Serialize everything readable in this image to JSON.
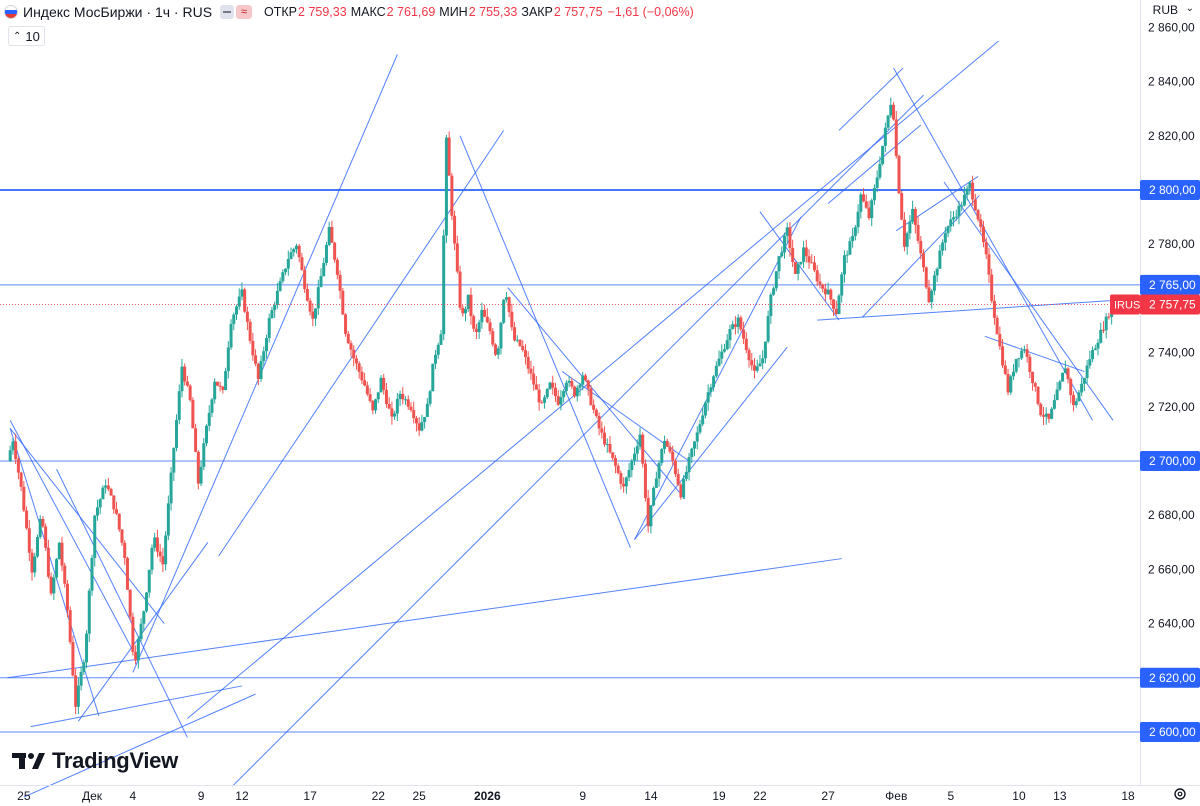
{
  "legend": {
    "symbol": "Индекс МосБиржи · 1ч · RUS",
    "open_label": "ОТКР",
    "open_value": "2 759,33",
    "high_label": "МАКС",
    "high_value": "2 761,69",
    "low_label": "МИН",
    "low_value": "2 755,33",
    "close_label": "ЗАКР",
    "close_value": "2 757,75",
    "change": "−1,61 (−0,06%)",
    "approx_glyph": "≈",
    "collapse_count": "10"
  },
  "currency": "RUB",
  "branding": "TradingView",
  "colors": {
    "up": "#26a69a",
    "down": "#ef5350",
    "drawing": "#2962ff",
    "price_label": "#f23645",
    "horizontal_level": "#2962ff"
  },
  "chart_data": {
    "type": "candlestick",
    "title": "Индекс МосБиржи · 1ч · RUS",
    "ylim": [
      2584,
      2866
    ],
    "y_ticks": [
      "2 860,00",
      "2 840,00",
      "2 820,00",
      "2 800,00",
      "2 780,00",
      "2 760,00",
      "2 740,00",
      "2 720,00",
      "2 700,00",
      "2 680,00",
      "2 660,00",
      "2 640,00",
      "2 620,00",
      "2 600,00"
    ],
    "y_tick_values": [
      2860,
      2840,
      2820,
      2800,
      2780,
      2760,
      2740,
      2720,
      2700,
      2680,
      2660,
      2640,
      2620,
      2600
    ],
    "x_ticks": [
      {
        "label": "25",
        "day": -4,
        "bold": false
      },
      {
        "label": "Дек",
        "day": 1,
        "bold": false
      },
      {
        "label": "4",
        "day": 4,
        "bold": false
      },
      {
        "label": "9",
        "day": 9,
        "bold": false
      },
      {
        "label": "12",
        "day": 12,
        "bold": false
      },
      {
        "label": "17",
        "day": 17,
        "bold": false
      },
      {
        "label": "22",
        "day": 22,
        "bold": false
      },
      {
        "label": "25",
        "day": 25,
        "bold": false
      },
      {
        "label": "2026",
        "day": 30,
        "bold": true
      },
      {
        "label": "9",
        "day": 37,
        "bold": false
      },
      {
        "label": "14",
        "day": 42,
        "bold": false
      },
      {
        "label": "19",
        "day": 47,
        "bold": false
      },
      {
        "label": "22",
        "day": 50,
        "bold": false
      },
      {
        "label": "27",
        "day": 55,
        "bold": false
      },
      {
        "label": "Фев",
        "day": 60,
        "bold": false
      },
      {
        "label": "5",
        "day": 64,
        "bold": false
      },
      {
        "label": "10",
        "day": 69,
        "bold": false
      },
      {
        "label": "13",
        "day": 72,
        "bold": false
      },
      {
        "label": "18",
        "day": 77,
        "bold": false
      }
    ],
    "price_path": [
      [
        -5,
        2700
      ],
      [
        -4.6,
        2708
      ],
      [
        -4,
        2690
      ],
      [
        -3.2,
        2660
      ],
      [
        -2.5,
        2680
      ],
      [
        -1.8,
        2650
      ],
      [
        -1.2,
        2670
      ],
      [
        -0.6,
        2645
      ],
      [
        0,
        2610
      ],
      [
        0.7,
        2630
      ],
      [
        1.4,
        2680
      ],
      [
        2.2,
        2692
      ],
      [
        2.9,
        2682
      ],
      [
        3.6,
        2665
      ],
      [
        4.3,
        2625
      ],
      [
        5,
        2645
      ],
      [
        5.7,
        2672
      ],
      [
        6.4,
        2662
      ],
      [
        7.2,
        2705
      ],
      [
        7.8,
        2735
      ],
      [
        8.4,
        2722
      ],
      [
        9,
        2692
      ],
      [
        9.6,
        2712
      ],
      [
        10.2,
        2730
      ],
      [
        10.8,
        2725
      ],
      [
        11.4,
        2752
      ],
      [
        12.2,
        2762
      ],
      [
        12.8,
        2745
      ],
      [
        13.4,
        2730
      ],
      [
        14.2,
        2752
      ],
      [
        14.8,
        2762
      ],
      [
        15.6,
        2775
      ],
      [
        16.2,
        2780
      ],
      [
        16.8,
        2765
      ],
      [
        17.4,
        2752
      ],
      [
        18,
        2768
      ],
      [
        18.6,
        2785
      ],
      [
        19.2,
        2770
      ],
      [
        19.8,
        2748
      ],
      [
        20.4,
        2738
      ],
      [
        21.2,
        2728
      ],
      [
        21.8,
        2718
      ],
      [
        22.4,
        2730
      ],
      [
        23.2,
        2715
      ],
      [
        23.8,
        2725
      ],
      [
        24.6,
        2720
      ],
      [
        25.2,
        2712
      ],
      [
        25.8,
        2720
      ],
      [
        26.3,
        2738
      ],
      [
        26.8,
        2748
      ],
      [
        27.2,
        2818
      ],
      [
        27.7,
        2785
      ],
      [
        28.3,
        2752
      ],
      [
        28.8,
        2760
      ],
      [
        29.3,
        2745
      ],
      [
        29.8,
        2755
      ],
      [
        30.4,
        2748
      ],
      [
        30.9,
        2738
      ],
      [
        31.5,
        2765
      ],
      [
        32.1,
        2745
      ],
      [
        32.7,
        2742
      ],
      [
        33.5,
        2730
      ],
      [
        34.2,
        2720
      ],
      [
        34.8,
        2728
      ],
      [
        35.4,
        2722
      ],
      [
        36,
        2730
      ],
      [
        36.6,
        2725
      ],
      [
        37.2,
        2732
      ],
      [
        37.8,
        2722
      ],
      [
        38.4,
        2712
      ],
      [
        39,
        2705
      ],
      [
        39.6,
        2698
      ],
      [
        40.2,
        2690
      ],
      [
        40.8,
        2700
      ],
      [
        41.4,
        2710
      ],
      [
        42,
        2676
      ],
      [
        42.6,
        2695
      ],
      [
        43.2,
        2708
      ],
      [
        43.8,
        2700
      ],
      [
        44.4,
        2688
      ],
      [
        45,
        2700
      ],
      [
        45.6,
        2710
      ],
      [
        46.2,
        2722
      ],
      [
        46.8,
        2732
      ],
      [
        47.4,
        2740
      ],
      [
        48,
        2748
      ],
      [
        48.6,
        2752
      ],
      [
        49.2,
        2742
      ],
      [
        49.8,
        2732
      ],
      [
        50.4,
        2738
      ],
      [
        51,
        2760
      ],
      [
        51.6,
        2775
      ],
      [
        52.2,
        2785
      ],
      [
        52.8,
        2768
      ],
      [
        53.4,
        2778
      ],
      [
        54,
        2772
      ],
      [
        54.6,
        2765
      ],
      [
        55.2,
        2762
      ],
      [
        55.8,
        2755
      ],
      [
        56.4,
        2775
      ],
      [
        57,
        2782
      ],
      [
        57.6,
        2798
      ],
      [
        58.2,
        2790
      ],
      [
        58.8,
        2805
      ],
      [
        59.4,
        2822
      ],
      [
        59.9,
        2835
      ],
      [
        60.3,
        2805
      ],
      [
        60.8,
        2780
      ],
      [
        61.4,
        2792
      ],
      [
        62,
        2776
      ],
      [
        62.6,
        2760
      ],
      [
        63.2,
        2772
      ],
      [
        63.8,
        2785
      ],
      [
        64.4,
        2790
      ],
      [
        65,
        2795
      ],
      [
        65.6,
        2802
      ],
      [
        66.2,
        2790
      ],
      [
        66.8,
        2775
      ],
      [
        67.2,
        2760
      ],
      [
        67.8,
        2742
      ],
      [
        68.4,
        2726
      ],
      [
        69,
        2738
      ],
      [
        69.6,
        2742
      ],
      [
        70.2,
        2730
      ],
      [
        70.8,
        2718
      ],
      [
        71.4,
        2715
      ],
      [
        72,
        2725
      ],
      [
        72.6,
        2735
      ],
      [
        73.2,
        2720
      ],
      [
        73.8,
        2728
      ],
      [
        74.4,
        2738
      ],
      [
        75,
        2745
      ],
      [
        75.6,
        2752
      ],
      [
        76.2,
        2760
      ],
      [
        76.8,
        2757.75
      ]
    ],
    "last_price": 2757.75,
    "last_price_label": "2 757,75",
    "last_symbol": "IRUS",
    "horizontal_levels": [
      {
        "value": 2800,
        "label": "2 800,00",
        "strong": true
      },
      {
        "value": 2765,
        "label": "2 765,00",
        "strong": false
      },
      {
        "value": 2700,
        "label": "2 700,00",
        "strong": false
      },
      {
        "value": 2620,
        "label": "2 620,00",
        "strong": false
      },
      {
        "value": 2600,
        "label": "2 600,00",
        "strong": false
      }
    ],
    "trendlines": [
      [
        [
          -5,
          2715
        ],
        [
          4,
          2630
        ]
      ],
      [
        [
          -5,
          2712
        ],
        [
          6.3,
          2640
        ]
      ],
      [
        [
          -5,
          2712
        ],
        [
          1.5,
          2606
        ]
      ],
      [
        [
          -1.6,
          2697
        ],
        [
          8,
          2598
        ]
      ],
      [
        [
          -3.5,
          2602
        ],
        [
          12,
          2617
        ]
      ],
      [
        [
          -5.2,
          2620
        ],
        [
          56,
          2664
        ]
      ],
      [
        [
          0,
          2604
        ],
        [
          9.5,
          2670
        ]
      ],
      [
        [
          -4,
          2576
        ],
        [
          13,
          2614
        ]
      ],
      [
        [
          4,
          2622
        ],
        [
          23.4,
          2850
        ]
      ],
      [
        [
          10.3,
          2665
        ],
        [
          31.2,
          2822
        ]
      ],
      [
        [
          11.3,
          2580
        ],
        [
          62,
          2835
        ]
      ],
      [
        [
          8,
          2605
        ],
        [
          67.5,
          2855
        ]
      ],
      [
        [
          28,
          2820
        ],
        [
          40.5,
          2668
        ]
      ],
      [
        [
          31.5,
          2764
        ],
        [
          44.5,
          2686
        ]
      ],
      [
        [
          35.5,
          2733
        ],
        [
          44.8,
          2700
        ]
      ],
      [
        [
          40.8,
          2671
        ],
        [
          53,
          2790
        ]
      ],
      [
        [
          40.8,
          2671
        ],
        [
          52,
          2742
        ]
      ],
      [
        [
          55,
          2795
        ],
        [
          61.8,
          2824
        ]
      ],
      [
        [
          57.5,
          2753
        ],
        [
          66.1,
          2798
        ]
      ],
      [
        [
          55.8,
          2822
        ],
        [
          60.5,
          2845
        ]
      ],
      [
        [
          59.8,
          2845
        ],
        [
          74.4,
          2715
        ]
      ],
      [
        [
          50,
          2792
        ],
        [
          55.8,
          2752
        ]
      ],
      [
        [
          60,
          2785
        ],
        [
          66,
          2805
        ]
      ],
      [
        [
          54.2,
          2752
        ],
        [
          78.2,
          2760
        ]
      ],
      [
        [
          66.5,
          2746
        ],
        [
          73.8,
          2733
        ]
      ],
      [
        [
          63.5,
          2803
        ],
        [
          75.9,
          2715
        ]
      ]
    ]
  }
}
